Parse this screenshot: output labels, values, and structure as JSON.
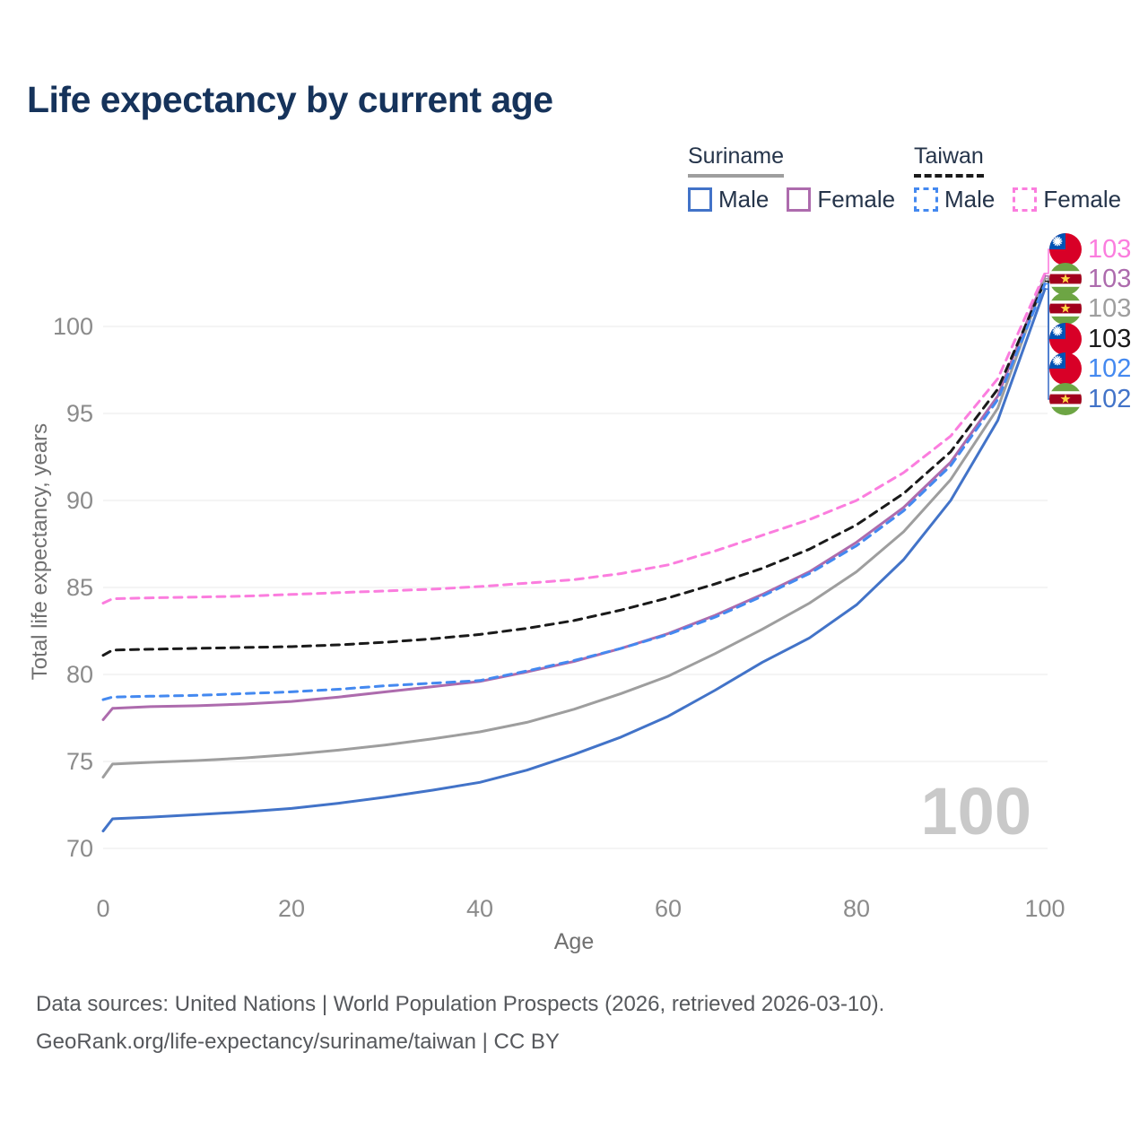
{
  "page": {
    "title": "Life expectancy by current age",
    "watermark_age": "100",
    "footer_line1": "Data sources: United Nations | World Population Prospects (2026, retrieved 2026-03-10).",
    "footer_line2": "GeoRank.org/life-expectancy/suriname/taiwan | CC BY"
  },
  "legend": {
    "groups": [
      {
        "name": "Suriname",
        "line_style": "solid",
        "underline_color": "#9e9e9e",
        "items": [
          {
            "label": "Male",
            "color": "#4273c8"
          },
          {
            "label": "Female",
            "color": "#ad6bad"
          }
        ]
      },
      {
        "name": "Taiwan",
        "line_style": "dashed",
        "underline_color": "#1a1a1a",
        "items": [
          {
            "label": "Male",
            "color": "#4489f0"
          },
          {
            "label": "Female",
            "color": "#fb7dde"
          }
        ]
      }
    ]
  },
  "chart_data": {
    "type": "line",
    "title": "Life expectancy by current age",
    "xlabel": "Age",
    "ylabel": "Total life expectancy, years",
    "x_ticks": [
      0,
      20,
      40,
      60,
      80,
      100
    ],
    "y_ticks": [
      70,
      75,
      80,
      85,
      90,
      95,
      100
    ],
    "xlim": [
      0,
      100
    ],
    "ylim": [
      69.7,
      103.6
    ],
    "grid": "horizontal",
    "legend_position": "top-right",
    "ages": [
      0,
      1,
      5,
      10,
      15,
      20,
      25,
      30,
      35,
      40,
      45,
      50,
      55,
      60,
      65,
      70,
      75,
      80,
      85,
      90,
      95,
      100
    ],
    "series": [
      {
        "id": "suriname-female",
        "name": "Suriname Female",
        "country": "Suriname",
        "sex": "Female",
        "color": "#ad6bad",
        "dash": "solid",
        "values": [
          77.4,
          78.05,
          78.15,
          78.2,
          78.3,
          78.45,
          78.7,
          79.0,
          79.3,
          79.6,
          80.15,
          80.75,
          81.5,
          82.35,
          83.4,
          84.6,
          85.9,
          87.6,
          89.6,
          92.2,
          96.0,
          102.9
        ]
      },
      {
        "id": "suriname-all",
        "name": "Suriname",
        "country": "Suriname",
        "sex": "All",
        "color": "#9e9e9e",
        "dash": "solid",
        "values": [
          74.1,
          74.85,
          74.95,
          75.05,
          75.2,
          75.4,
          75.65,
          75.95,
          76.3,
          76.7,
          77.25,
          78.0,
          78.9,
          79.9,
          81.2,
          82.6,
          84.1,
          85.9,
          88.2,
          91.2,
          95.3,
          102.75
        ]
      },
      {
        "id": "suriname-male",
        "name": "Suriname Male",
        "country": "Suriname",
        "sex": "Male",
        "color": "#4273c8",
        "dash": "solid",
        "values": [
          71.0,
          71.7,
          71.8,
          71.95,
          72.1,
          72.3,
          72.6,
          72.95,
          73.35,
          73.8,
          74.5,
          75.4,
          76.4,
          77.6,
          79.1,
          80.7,
          82.1,
          84.0,
          86.6,
          90.0,
          94.6,
          102.15
        ]
      },
      {
        "id": "taiwan-all",
        "name": "Taiwan",
        "country": "Taiwan",
        "sex": "All",
        "color": "#1a1a1a",
        "dash": "dashed",
        "values": [
          81.1,
          81.4,
          81.45,
          81.5,
          81.55,
          81.6,
          81.7,
          81.85,
          82.05,
          82.3,
          82.65,
          83.1,
          83.7,
          84.4,
          85.2,
          86.1,
          87.2,
          88.6,
          90.4,
          92.8,
          96.4,
          102.6
        ]
      },
      {
        "id": "taiwan-male",
        "name": "Taiwan Male",
        "country": "Taiwan",
        "sex": "Male",
        "color": "#4489f0",
        "dash": "dashed",
        "values": [
          78.55,
          78.7,
          78.75,
          78.8,
          78.9,
          79.0,
          79.15,
          79.35,
          79.5,
          79.65,
          80.2,
          80.8,
          81.5,
          82.3,
          83.3,
          84.5,
          85.8,
          87.4,
          89.4,
          92.0,
          95.8,
          102.45
        ]
      },
      {
        "id": "taiwan-female",
        "name": "Taiwan Female",
        "country": "Taiwan",
        "sex": "Female",
        "color": "#fb7dde",
        "dash": "dashed",
        "values": [
          84.1,
          84.35,
          84.4,
          84.45,
          84.5,
          84.6,
          84.7,
          84.8,
          84.9,
          85.05,
          85.25,
          85.45,
          85.8,
          86.3,
          87.1,
          88.0,
          88.9,
          90.0,
          91.6,
          93.7,
          97.0,
          103.05
        ]
      }
    ],
    "end_labels": [
      {
        "series": "taiwan-female",
        "flag": "taiwan",
        "value": "103",
        "color": "#fb7dde"
      },
      {
        "series": "suriname-female",
        "flag": "suriname",
        "value": "103",
        "color": "#ad6bad"
      },
      {
        "series": "suriname-all",
        "flag": "suriname",
        "value": "103",
        "color": "#9e9e9e"
      },
      {
        "series": "taiwan-all",
        "flag": "taiwan",
        "value": "103",
        "color": "#1a1a1a"
      },
      {
        "series": "taiwan-male",
        "flag": "taiwan",
        "value": "102",
        "color": "#4489f0"
      },
      {
        "series": "suriname-male",
        "flag": "suriname",
        "value": "102",
        "color": "#4273c8"
      }
    ]
  }
}
